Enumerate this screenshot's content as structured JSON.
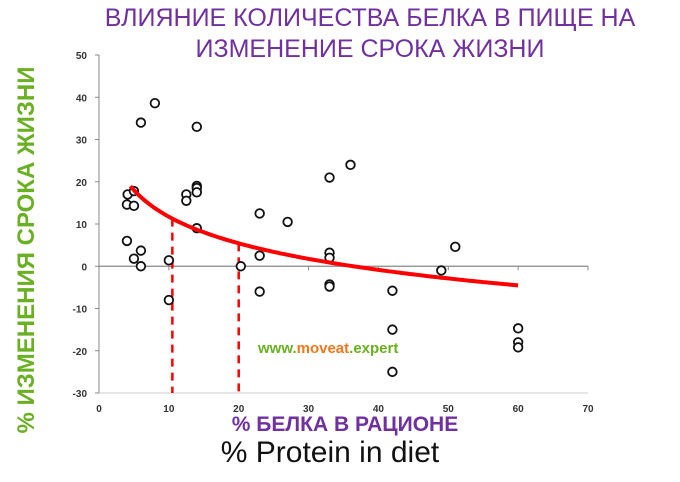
{
  "chart_data": {
    "type": "scatter",
    "title": [
      "ВЛИЯНИЕ КОЛИЧЕСТВА БЕЛКА В ПИЩЕ НА",
      "ИЗМЕНЕНИЕ СРОКА ЖИЗНИ"
    ],
    "xlabel": "% БЕЛКА В РАЦИОНЕ",
    "xlabel_en": "% Protein in diet",
    "ylabel": "% ИЗМЕНЕНИЯ СРОКА ЖИЗНИ",
    "xlim": [
      0,
      70
    ],
    "ylim": [
      -30,
      50
    ],
    "xticks": [
      0,
      10,
      20,
      30,
      40,
      50,
      60,
      70
    ],
    "yticks": [
      50,
      40,
      30,
      20,
      10,
      0,
      -10,
      -20,
      -30
    ],
    "points": [
      [
        4.1,
        17
      ],
      [
        5,
        17.8
      ],
      [
        4,
        14.6
      ],
      [
        5,
        14.3
      ],
      [
        4,
        6
      ],
      [
        6,
        3.7
      ],
      [
        5,
        1.8
      ],
      [
        6,
        0
      ],
      [
        6,
        34
      ],
      [
        8,
        38.6
      ],
      [
        10,
        1.4
      ],
      [
        10,
        -8
      ],
      [
        14,
        33
      ],
      [
        14,
        19
      ],
      [
        14,
        18.5
      ],
      [
        14,
        17.5
      ],
      [
        12.5,
        17
      ],
      [
        12.5,
        15.5
      ],
      [
        14,
        9
      ],
      [
        20.3,
        0
      ],
      [
        23,
        12.5
      ],
      [
        23,
        2.5
      ],
      [
        23,
        -6
      ],
      [
        27,
        10.5
      ],
      [
        33,
        21
      ],
      [
        33,
        3.2
      ],
      [
        33,
        2
      ],
      [
        33,
        -4.3
      ],
      [
        33,
        -4.8
      ],
      [
        36,
        24
      ],
      [
        42,
        -5.8
      ],
      [
        42,
        -15
      ],
      [
        42,
        -25
      ],
      [
        49,
        -1
      ],
      [
        51,
        4.6
      ],
      [
        60,
        -14.7
      ],
      [
        60,
        -18
      ],
      [
        60,
        -19.2
      ]
    ],
    "trend": {
      "type": "logarithmic",
      "a": 32.6,
      "b": 9.07,
      "x_range": [
        4.5,
        60
      ],
      "color": "#ff0000"
    },
    "reference_lines_x": [
      10.5,
      20
    ],
    "grid": false
  },
  "watermark": {
    "prefix": "www.",
    "brand": "moveat",
    "suffix": ".expert",
    "green": "#6ab023",
    "orange": "#f07820"
  }
}
